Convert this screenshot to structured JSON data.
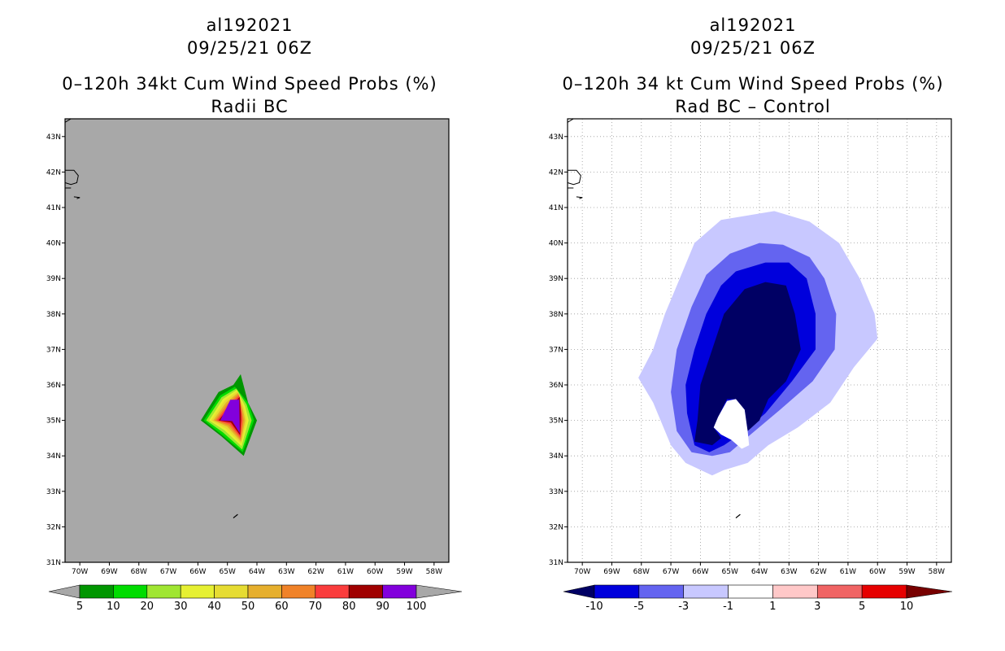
{
  "chart_data": [
    {
      "type": "heatmap",
      "storm_id": "al192021",
      "datetime": "09/25/21 06Z",
      "title": "0–120h 34kt Cum Wind Speed Probs (%)",
      "subtitle": "Radii BC",
      "lat_ticks": [
        "31N",
        "32N",
        "33N",
        "34N",
        "35N",
        "36N",
        "37N",
        "38N",
        "39N",
        "40N",
        "41N",
        "42N",
        "43N"
      ],
      "lon_ticks": [
        "70W",
        "69W",
        "68W",
        "67W",
        "66W",
        "65W",
        "64W",
        "63W",
        "62W",
        "61W",
        "60W",
        "59W",
        "58W"
      ],
      "lat_range": [
        31,
        43.5
      ],
      "lon_range": [
        -70.5,
        -57.5
      ],
      "grid": false,
      "background_color": "#a8a8a8",
      "colorbar": {
        "levels": [
          "5",
          "10",
          "20",
          "30",
          "40",
          "50",
          "60",
          "70",
          "80",
          "90",
          "100"
        ],
        "colors": [
          "#009600",
          "#00dc00",
          "#a0e632",
          "#e6f032",
          "#e6dc32",
          "#e6af2d",
          "#f08228",
          "#fa3c3c",
          "#a00000",
          "#8200dc"
        ],
        "end_left_color": "#a8a8a8",
        "end_right_color": "#a8a8a8"
      },
      "contours": [
        {
          "level": 5,
          "color": "#009600",
          "polygon": [
            [
              -65.9,
              35.0
            ],
            [
              -65.3,
              35.8
            ],
            [
              -64.8,
              36.0
            ],
            [
              -64.55,
              36.3
            ],
            [
              -64.3,
              35.5
            ],
            [
              -64.0,
              35.0
            ],
            [
              -64.45,
              34.0
            ],
            [
              -65.2,
              34.55
            ]
          ]
        },
        {
          "level": 10,
          "color": "#00dc00",
          "polygon": [
            [
              -65.8,
              35.0
            ],
            [
              -65.25,
              35.7
            ],
            [
              -64.75,
              35.95
            ],
            [
              -64.3,
              35.5
            ],
            [
              -64.1,
              35.0
            ],
            [
              -64.48,
              34.1
            ],
            [
              -65.2,
              34.6
            ]
          ]
        },
        {
          "level": 20,
          "color": "#a0e632",
          "polygon": [
            [
              -65.72,
              35.0
            ],
            [
              -65.2,
              35.65
            ],
            [
              -64.7,
              35.9
            ],
            [
              -64.35,
              35.45
            ],
            [
              -64.18,
              35.0
            ],
            [
              -64.5,
              34.18
            ],
            [
              -65.15,
              34.66
            ]
          ]
        },
        {
          "level": 30,
          "color": "#e6f032",
          "polygon": [
            [
              -65.62,
              35.0
            ],
            [
              -65.15,
              35.6
            ],
            [
              -64.68,
              35.86
            ],
            [
              -64.4,
              35.4
            ],
            [
              -64.28,
              35.0
            ],
            [
              -64.52,
              34.27
            ],
            [
              -65.1,
              34.72
            ]
          ]
        },
        {
          "level": 40,
          "color": "#e6dc32",
          "polygon": [
            [
              -65.55,
              35.0
            ],
            [
              -65.1,
              35.55
            ],
            [
              -64.66,
              35.82
            ],
            [
              -64.44,
              35.35
            ],
            [
              -64.35,
              35.0
            ],
            [
              -64.53,
              34.34
            ],
            [
              -65.05,
              34.77
            ]
          ]
        },
        {
          "level": 50,
          "color": "#e6af2d",
          "polygon": [
            [
              -65.48,
              35.0
            ],
            [
              -65.05,
              35.5
            ],
            [
              -64.64,
              35.78
            ],
            [
              -64.47,
              35.3
            ],
            [
              -64.4,
              35.0
            ],
            [
              -64.54,
              34.4
            ],
            [
              -65.0,
              34.82
            ]
          ]
        },
        {
          "level": 60,
          "color": "#f08228",
          "polygon": [
            [
              -65.42,
              35.0
            ],
            [
              -65.0,
              35.46
            ],
            [
              -64.62,
              35.74
            ],
            [
              -64.5,
              35.25
            ],
            [
              -64.45,
              35.0
            ],
            [
              -64.55,
              34.46
            ],
            [
              -64.96,
              34.86
            ]
          ]
        },
        {
          "level": 70,
          "color": "#fa3c3c",
          "polygon": [
            [
              -65.36,
              35.0
            ],
            [
              -64.96,
              35.42
            ],
            [
              -64.6,
              35.7
            ],
            [
              -64.52,
              35.2
            ],
            [
              -64.5,
              35.0
            ],
            [
              -64.56,
              34.52
            ],
            [
              -64.92,
              34.9
            ]
          ]
        },
        {
          "level": 80,
          "color": "#a00000",
          "polygon": [
            [
              -65.3,
              35.0
            ],
            [
              -64.93,
              35.38
            ],
            [
              -64.58,
              35.66
            ],
            [
              -64.54,
              35.15
            ],
            [
              -64.54,
              35.0
            ],
            [
              -64.57,
              34.58
            ],
            [
              -64.88,
              34.94
            ]
          ]
        },
        {
          "level": 90,
          "color": "#8200dc",
          "polygon": [
            [
              -65.24,
              35.0
            ],
            [
              -64.9,
              35.58
            ],
            [
              -64.6,
              35.58
            ],
            [
              -64.58,
              34.64
            ],
            [
              -64.84,
              34.98
            ]
          ]
        }
      ]
    },
    {
      "type": "heatmap",
      "storm_id": "al192021",
      "datetime": "09/25/21 06Z",
      "title": "0–120h 34 kt Cum Wind Speed Probs (%)",
      "subtitle": "Rad BC – Control",
      "lat_ticks": [
        "31N",
        "32N",
        "33N",
        "34N",
        "35N",
        "36N",
        "37N",
        "38N",
        "39N",
        "40N",
        "41N",
        "42N",
        "43N"
      ],
      "lon_ticks": [
        "70W",
        "69W",
        "68W",
        "67W",
        "66W",
        "65W",
        "64W",
        "63W",
        "62W",
        "61W",
        "60W",
        "59W",
        "58W"
      ],
      "lat_range": [
        31,
        43.5
      ],
      "lon_range": [
        -70.5,
        -57.5
      ],
      "grid": true,
      "background_color": "#ffffff",
      "colorbar": {
        "levels": [
          "-10",
          "-5",
          "-3",
          "-1",
          "1",
          "3",
          "5",
          "10"
        ],
        "colors": [
          "#0000dc",
          "#6464f0",
          "#c8c8ff",
          "#ffffff",
          "#ffc8c8",
          "#f06464",
          "#e60000"
        ],
        "end_left_color": "#000064",
        "end_right_color": "#780000"
      },
      "contours": [
        {
          "level": -1,
          "color": "#c8c8ff",
          "polygon": [
            [
              -66.2,
              40.0
            ],
            [
              -65.3,
              40.65
            ],
            [
              -63.5,
              40.9
            ],
            [
              -62.3,
              40.6
            ],
            [
              -61.3,
              40.0
            ],
            [
              -60.6,
              39.0
            ],
            [
              -60.1,
              38.0
            ],
            [
              -60.0,
              37.3
            ],
            [
              -60.8,
              36.5
            ],
            [
              -61.6,
              35.5
            ],
            [
              -62.7,
              34.8
            ],
            [
              -63.7,
              34.3
            ],
            [
              -64.4,
              33.8
            ],
            [
              -65.2,
              33.6
            ],
            [
              -65.6,
              33.45
            ],
            [
              -66.5,
              33.8
            ],
            [
              -67.0,
              34.3
            ],
            [
              -67.6,
              35.5
            ],
            [
              -68.1,
              36.2
            ],
            [
              -67.6,
              37.0
            ],
            [
              -67.2,
              38.0
            ],
            [
              -66.7,
              39.0
            ]
          ]
        },
        {
          "level": -3,
          "color": "#6464f0",
          "polygon": [
            [
              -65.0,
              39.7
            ],
            [
              -64.0,
              40.0
            ],
            [
              -63.2,
              39.95
            ],
            [
              -62.3,
              39.6
            ],
            [
              -61.8,
              39.0
            ],
            [
              -61.4,
              38.0
            ],
            [
              -61.45,
              37.0
            ],
            [
              -62.2,
              36.1
            ],
            [
              -63.3,
              35.3
            ],
            [
              -64.3,
              34.6
            ],
            [
              -65.0,
              34.1
            ],
            [
              -65.6,
              34.0
            ],
            [
              -66.3,
              34.1
            ],
            [
              -66.8,
              34.7
            ],
            [
              -67.0,
              35.8
            ],
            [
              -66.8,
              37.0
            ],
            [
              -66.3,
              38.2
            ],
            [
              -65.8,
              39.1
            ]
          ]
        },
        {
          "level": -5,
          "color": "#0000dc",
          "polygon": [
            [
              -64.8,
              39.2
            ],
            [
              -63.8,
              39.45
            ],
            [
              -63.0,
              39.45
            ],
            [
              -62.4,
              39.0
            ],
            [
              -62.1,
              38.0
            ],
            [
              -62.1,
              37.0
            ],
            [
              -62.9,
              36.1
            ],
            [
              -63.8,
              35.2
            ],
            [
              -64.5,
              34.7
            ],
            [
              -65.2,
              34.3
            ],
            [
              -65.7,
              34.1
            ],
            [
              -66.2,
              34.3
            ],
            [
              -66.45,
              35.2
            ],
            [
              -66.5,
              36.0
            ],
            [
              -66.2,
              37.0
            ],
            [
              -65.8,
              38.0
            ],
            [
              -65.3,
              38.8
            ]
          ]
        },
        {
          "level": -10,
          "color": "#000064",
          "polygon": [
            [
              -64.5,
              38.7
            ],
            [
              -63.8,
              38.9
            ],
            [
              -63.1,
              38.8
            ],
            [
              -62.8,
              38.0
            ],
            [
              -62.6,
              37.0
            ],
            [
              -63.1,
              36.1
            ],
            [
              -63.7,
              35.6
            ],
            [
              -64.0,
              35.0
            ],
            [
              -64.4,
              34.7
            ],
            [
              -64.5,
              35.3
            ],
            [
              -64.8,
              35.6
            ],
            [
              -65.1,
              35.6
            ],
            [
              -65.4,
              35.1
            ],
            [
              -65.55,
              34.8
            ],
            [
              -65.3,
              34.5
            ],
            [
              -65.6,
              34.3
            ],
            [
              -66.2,
              34.4
            ],
            [
              -66.1,
              35.0
            ],
            [
              -66.0,
              36.0
            ],
            [
              -65.6,
              37.0
            ],
            [
              -65.2,
              38.0
            ]
          ]
        },
        {
          "level": 1,
          "color": "#ffffff",
          "polygon": [
            [
              -64.8,
              35.6
            ],
            [
              -64.5,
              35.3
            ],
            [
              -64.4,
              34.7
            ],
            [
              -64.35,
              34.3
            ],
            [
              -64.6,
              34.2
            ],
            [
              -64.95,
              34.45
            ],
            [
              -65.3,
              34.6
            ],
            [
              -65.55,
              34.8
            ],
            [
              -65.4,
              35.1
            ],
            [
              -65.1,
              35.55
            ]
          ]
        }
      ]
    }
  ]
}
